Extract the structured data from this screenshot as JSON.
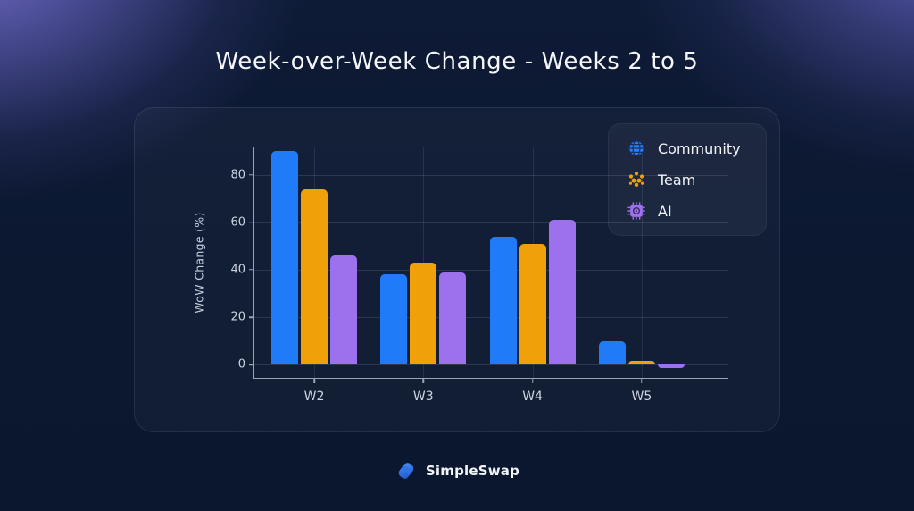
{
  "page": {
    "title": "Week-over-Week Change - Weeks 2 to 5"
  },
  "legend": {
    "items": [
      {
        "label": "Community",
        "icon": "globe-icon",
        "color": "#1f7bf7"
      },
      {
        "label": "Team",
        "icon": "team-icon",
        "color": "#f0a008"
      },
      {
        "label": "AI",
        "icon": "chip-icon",
        "color": "#9d70ee"
      }
    ]
  },
  "footer": {
    "brand": "SimpleSwap"
  },
  "chart_data": {
    "type": "bar",
    "title": "Week-over-Week Change - Weeks 2 to 5",
    "categories": [
      "W2",
      "W3",
      "W4",
      "W5"
    ],
    "series": [
      {
        "name": "Community",
        "color": "#1f7bf7",
        "values": [
          90,
          38,
          54,
          10
        ]
      },
      {
        "name": "Team",
        "color": "#f0a008",
        "values": [
          74,
          43,
          51,
          1.5
        ]
      },
      {
        "name": "AI",
        "color": "#9d70ee",
        "values": [
          46,
          39,
          61,
          -1.5
        ]
      }
    ],
    "xlabel": "",
    "ylabel": "WoW Change (%)",
    "yticks": [
      0,
      20,
      40,
      60,
      80
    ],
    "ylim": [
      -6,
      92
    ],
    "grid": true,
    "legend_position": "top-right",
    "colors": {
      "background": "#0c1830",
      "card": "rgba(255,255,255,0.03)",
      "axis": "#99a2b6",
      "tick_text": "#ccd3e2"
    }
  }
}
